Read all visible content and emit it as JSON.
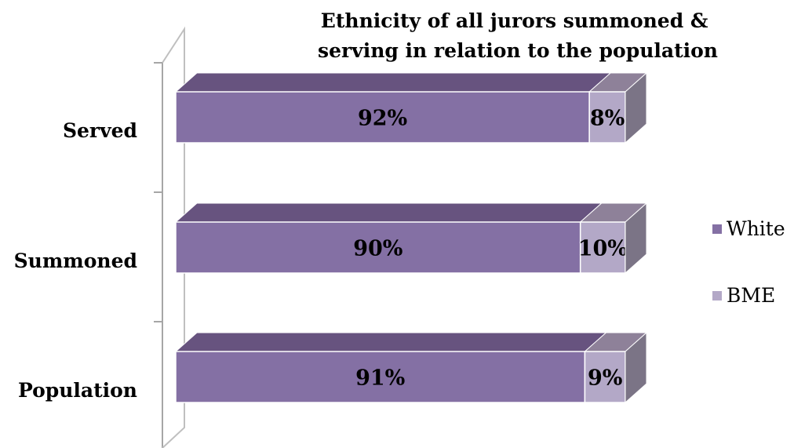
{
  "chart_data": {
    "type": "bar",
    "orientation": "horizontal",
    "stacked": "percent",
    "title": "Ethnicity of all jurors summoned & serving in relation to the population",
    "title_lines": [
      "Ethnicity of all jurors summoned &",
      "serving in relation to the population"
    ],
    "categories": [
      "Population",
      "Summoned",
      "Served"
    ],
    "series": [
      {
        "name": "White",
        "values": [
          91,
          90,
          92
        ],
        "labels": [
          "91%",
          "90%",
          "92%"
        ],
        "color": "#8470a4"
      },
      {
        "name": "BME",
        "values": [
          9,
          10,
          8
        ],
        "labels": [
          "9%",
          "10%",
          "8%"
        ],
        "color": "#b3a8c7"
      }
    ],
    "xlim": [
      0,
      100
    ],
    "legend_position": "right",
    "grid": false,
    "style": "3d"
  }
}
